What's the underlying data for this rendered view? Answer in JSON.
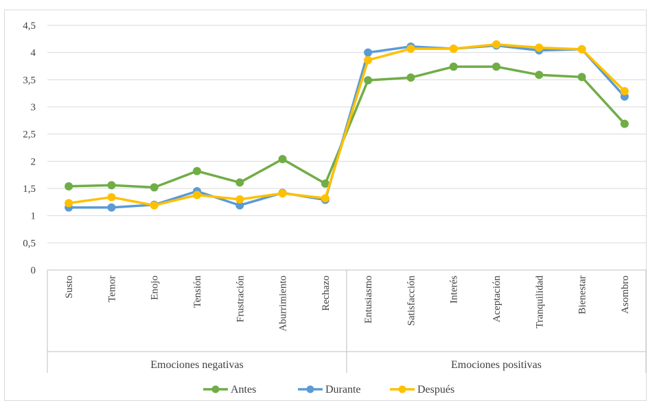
{
  "chart_data": {
    "type": "line",
    "categories": [
      "Susto",
      "Temor",
      "Enojo",
      "Tensión",
      "Frustración",
      "Aburrimiento",
      "Rechazo",
      "Entusiasmo",
      "Satisfacción",
      "Interés",
      "Aceptación",
      "Tranquilidad",
      "Bienestar",
      "Asombro"
    ],
    "category_groups": [
      {
        "label": "Emociones negativas",
        "count": 7
      },
      {
        "label": "Emociones positivas",
        "count": 7
      }
    ],
    "series": [
      {
        "name": "Antes",
        "color": "#70AD47",
        "values": [
          1.54,
          1.56,
          1.52,
          1.82,
          1.61,
          2.04,
          1.59,
          3.49,
          3.54,
          3.74,
          3.74,
          3.59,
          3.55,
          2.69
        ]
      },
      {
        "name": "Durante",
        "color": "#5B9BD5",
        "values": [
          1.15,
          1.15,
          1.2,
          1.45,
          1.19,
          1.42,
          1.29,
          4.0,
          4.11,
          4.07,
          4.13,
          4.04,
          4.06,
          3.19
        ]
      },
      {
        "name": "Después",
        "color": "#FFC000",
        "values": [
          1.23,
          1.34,
          1.19,
          1.38,
          1.3,
          1.41,
          1.32,
          3.86,
          4.07,
          4.07,
          4.15,
          4.09,
          4.06,
          3.29
        ]
      }
    ],
    "ylim": [
      0,
      4.5
    ],
    "y_ticks": [
      "0",
      "0,5",
      "1",
      "1,5",
      "2",
      "2,5",
      "3",
      "3,5",
      "4",
      "4,5"
    ],
    "grid": true,
    "legend_position": "bottom"
  }
}
